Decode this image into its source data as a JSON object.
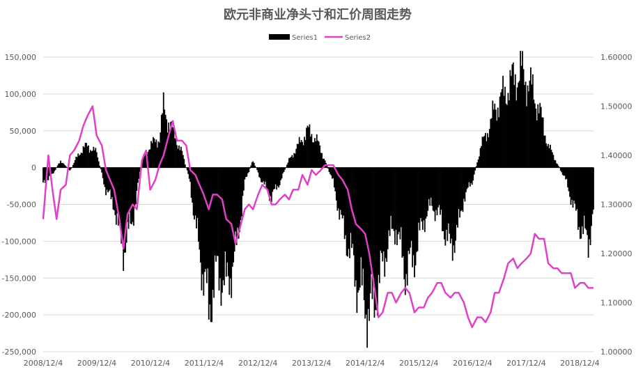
{
  "chart_data": {
    "type": "bar",
    "title": "欧元非商业净头寸和汇价周图走势",
    "series": [
      {
        "name": "Series1",
        "type": "bar",
        "axis": "left",
        "color": "#000000",
        "x": [
          "2008-12-04",
          "2009-02-05",
          "2009-04-02",
          "2009-06-04",
          "2009-08-06",
          "2009-10-01",
          "2009-12-03",
          "2010-02-04",
          "2010-04-01",
          "2010-05-06",
          "2010-06-03",
          "2010-08-05",
          "2010-10-07",
          "2010-12-02",
          "2011-02-03",
          "2011-03-03",
          "2011-05-05",
          "2011-07-07",
          "2011-09-01",
          "2011-10-06",
          "2011-11-03",
          "2011-12-01",
          "2012-01-05",
          "2012-03-01",
          "2012-05-03",
          "2012-07-05",
          "2012-09-06",
          "2012-11-01",
          "2013-01-03",
          "2013-03-07",
          "2013-05-02",
          "2013-07-04",
          "2013-09-05",
          "2013-11-07",
          "2014-01-02",
          "2014-03-06",
          "2014-05-01",
          "2014-07-03",
          "2014-09-04",
          "2014-10-02",
          "2014-12-04",
          "2015-01-01",
          "2015-03-05",
          "2015-05-07",
          "2015-07-02",
          "2015-09-03",
          "2015-11-05",
          "2016-01-07",
          "2016-03-03",
          "2016-05-05",
          "2016-07-07",
          "2016-09-01",
          "2016-10-06",
          "2016-12-01",
          "2017-02-02",
          "2017-04-06",
          "2017-05-04",
          "2017-07-06",
          "2017-09-07",
          "2017-11-02",
          "2018-01-04",
          "2018-03-01",
          "2018-05-03",
          "2018-07-05",
          "2018-09-06",
          "2018-11-01",
          "2018-12-06",
          "2019-01-31",
          "2019-03-07"
        ],
        "values": [
          -20000,
          -10000,
          10000,
          -5000,
          20000,
          30000,
          20000,
          -30000,
          -50000,
          -90000,
          -110000,
          -70000,
          10000,
          30000,
          40000,
          80000,
          50000,
          20000,
          -20000,
          -80000,
          -110000,
          -150000,
          -190000,
          -140000,
          -160000,
          -120000,
          -20000,
          10000,
          -20000,
          -40000,
          -20000,
          10000,
          30000,
          50000,
          40000,
          10000,
          -20000,
          -80000,
          -120000,
          -150000,
          -180000,
          -200000,
          -160000,
          -100000,
          -80000,
          -140000,
          -120000,
          -70000,
          -50000,
          -70000,
          -110000,
          -80000,
          -40000,
          -20000,
          30000,
          60000,
          80000,
          100000,
          120000,
          130000,
          110000,
          80000,
          30000,
          5000,
          -20000,
          -60000,
          -80000,
          -100000,
          -60000
        ]
      },
      {
        "name": "Series2",
        "type": "line",
        "axis": "right",
        "color": "#e040c8",
        "x": [
          "2008-12-04",
          "2009-01-08",
          "2009-02-05",
          "2009-03-05",
          "2009-04-02",
          "2009-05-07",
          "2009-06-04",
          "2009-07-02",
          "2009-08-06",
          "2009-09-03",
          "2009-10-01",
          "2009-11-05",
          "2009-12-03",
          "2010-01-07",
          "2010-02-04",
          "2010-03-04",
          "2010-04-01",
          "2010-05-06",
          "2010-06-03",
          "2010-07-01",
          "2010-08-05",
          "2010-09-02",
          "2010-10-07",
          "2010-11-04",
          "2010-12-02",
          "2011-01-06",
          "2011-02-03",
          "2011-03-03",
          "2011-04-07",
          "2011-05-05",
          "2011-06-02",
          "2011-07-07",
          "2011-08-04",
          "2011-09-01",
          "2011-10-06",
          "2011-11-03",
          "2011-12-01",
          "2012-01-05",
          "2012-02-02",
          "2012-03-01",
          "2012-04-05",
          "2012-05-03",
          "2012-06-07",
          "2012-07-05",
          "2012-08-02",
          "2012-09-06",
          "2012-10-04",
          "2012-11-01",
          "2012-12-06",
          "2013-01-03",
          "2013-02-07",
          "2013-03-07",
          "2013-04-04",
          "2013-05-02",
          "2013-06-06",
          "2013-07-04",
          "2013-08-01",
          "2013-09-05",
          "2013-10-03",
          "2013-11-07",
          "2013-12-05",
          "2014-01-02",
          "2014-02-06",
          "2014-03-06",
          "2014-04-03",
          "2014-05-01",
          "2014-06-05",
          "2014-07-03",
          "2014-08-07",
          "2014-09-04",
          "2014-10-02",
          "2014-11-06",
          "2014-12-04",
          "2015-01-01",
          "2015-02-05",
          "2015-03-05",
          "2015-04-02",
          "2015-05-07",
          "2015-06-04",
          "2015-07-02",
          "2015-08-06",
          "2015-09-03",
          "2015-10-01",
          "2015-11-05",
          "2015-12-03",
          "2016-01-07",
          "2016-02-04",
          "2016-03-03",
          "2016-04-07",
          "2016-05-05",
          "2016-06-02",
          "2016-07-07",
          "2016-08-04",
          "2016-09-01",
          "2016-10-06",
          "2016-11-03",
          "2016-12-01",
          "2017-01-05",
          "2017-02-02",
          "2017-03-02",
          "2017-04-06",
          "2017-05-04",
          "2017-06-01",
          "2017-07-06",
          "2017-08-03",
          "2017-09-07",
          "2017-10-05",
          "2017-11-02",
          "2017-12-07",
          "2018-01-04",
          "2018-02-01",
          "2018-03-01",
          "2018-04-05",
          "2018-05-03",
          "2018-06-07",
          "2018-07-05",
          "2018-08-02",
          "2018-09-06",
          "2018-10-04",
          "2018-11-01",
          "2018-12-06",
          "2019-01-03",
          "2019-01-31",
          "2019-03-07"
        ],
        "values": [
          1.27,
          1.4,
          1.33,
          1.27,
          1.33,
          1.34,
          1.4,
          1.41,
          1.43,
          1.46,
          1.48,
          1.5,
          1.44,
          1.42,
          1.37,
          1.35,
          1.33,
          1.27,
          1.21,
          1.28,
          1.3,
          1.29,
          1.39,
          1.41,
          1.33,
          1.35,
          1.38,
          1.4,
          1.44,
          1.47,
          1.43,
          1.43,
          1.42,
          1.37,
          1.36,
          1.34,
          1.32,
          1.29,
          1.32,
          1.32,
          1.31,
          1.27,
          1.26,
          1.22,
          1.25,
          1.29,
          1.3,
          1.29,
          1.32,
          1.34,
          1.33,
          1.3,
          1.3,
          1.31,
          1.32,
          1.31,
          1.33,
          1.33,
          1.36,
          1.34,
          1.37,
          1.36,
          1.37,
          1.38,
          1.38,
          1.38,
          1.36,
          1.35,
          1.33,
          1.29,
          1.26,
          1.25,
          1.24,
          1.2,
          1.13,
          1.07,
          1.08,
          1.12,
          1.12,
          1.1,
          1.12,
          1.13,
          1.12,
          1.08,
          1.09,
          1.09,
          1.11,
          1.12,
          1.14,
          1.14,
          1.12,
          1.11,
          1.12,
          1.12,
          1.1,
          1.07,
          1.05,
          1.07,
          1.07,
          1.06,
          1.08,
          1.12,
          1.12,
          1.15,
          1.18,
          1.19,
          1.17,
          1.18,
          1.19,
          1.2,
          1.24,
          1.23,
          1.23,
          1.18,
          1.17,
          1.17,
          1.16,
          1.16,
          1.16,
          1.13,
          1.14,
          1.14,
          1.13,
          1.13
        ]
      }
    ],
    "x_ticks": [
      "2008/12/4",
      "2009/12/4",
      "2010/12/4",
      "2011/12/4",
      "2012/12/4",
      "2013/12/4",
      "2014/12/4",
      "2015/12/4",
      "2016/12/4",
      "2017/12/4",
      "2018/12/4"
    ],
    "y_left": {
      "ticks": [
        "150,000",
        "100,000",
        "50,000",
        "0",
        "-50,000",
        "-100,000",
        "-150,000",
        "-200,000",
        "-250,000"
      ],
      "min": -250000,
      "max": 150000
    },
    "y_right": {
      "ticks": [
        "1.60000",
        "1.50000",
        "1.40000",
        "1.30000",
        "1.20000",
        "1.10000",
        "1.00000"
      ],
      "min": 1.0,
      "max": 1.6
    },
    "xlim": [
      "2008-12-04",
      "2019-03-07"
    ],
    "grid": true,
    "legend_position": "top"
  }
}
